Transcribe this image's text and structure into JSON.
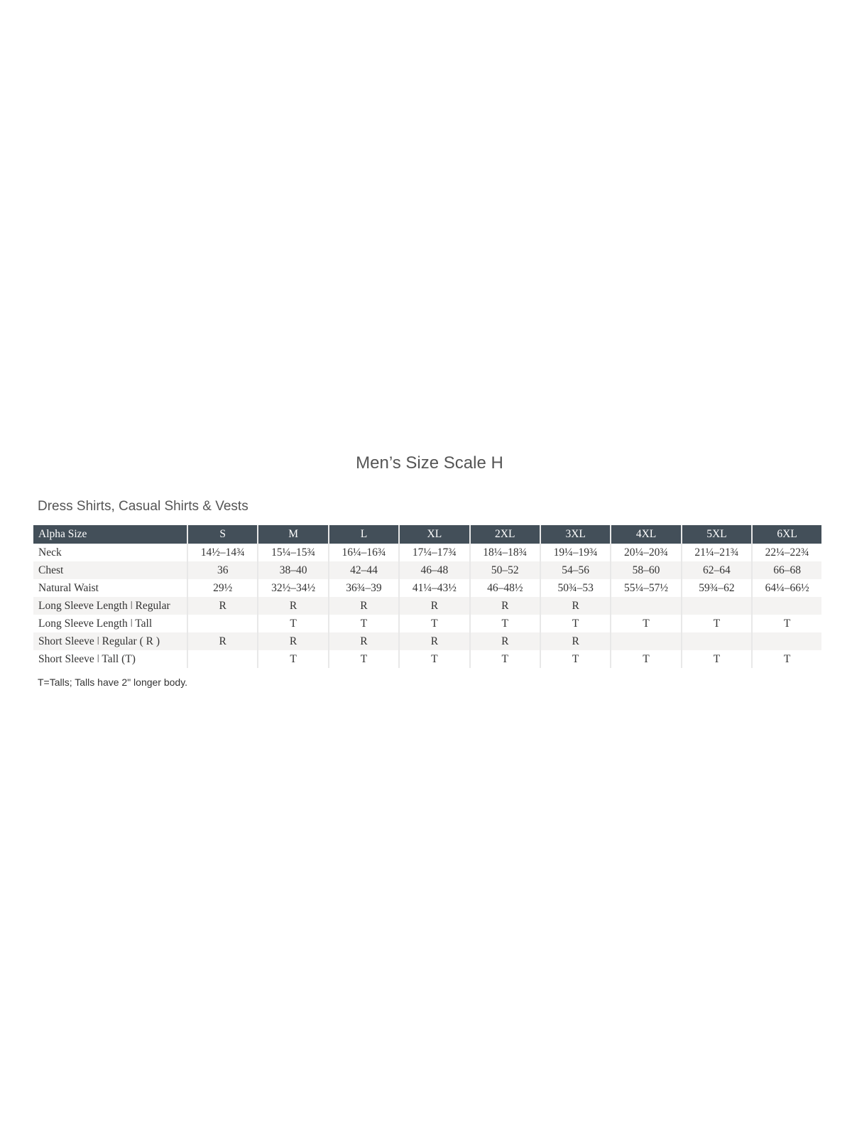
{
  "title": "Men’s Size Scale H",
  "subtitle": "Dress Shirts, Casual Shirts & Vests",
  "table": {
    "headers": [
      "Alpha Size",
      "S",
      "M",
      "L",
      "XL",
      "2XL",
      "3XL",
      "4XL",
      "5XL",
      "6XL"
    ],
    "rows": [
      [
        "Neck",
        "14½–14¾",
        "15¼–15¾",
        "16¼–16¾",
        "17¼–17¾",
        "18¼–18¾",
        "19¼–19¾",
        "20¼–20¾",
        "21¼–21¾",
        "22¼–22¾"
      ],
      [
        "Chest",
        "36",
        "38–40",
        "42–44",
        "46–48",
        "50–52",
        "54–56",
        "58–60",
        "62–64",
        "66–68"
      ],
      [
        "Natural Waist",
        "29½",
        "32½–34½",
        "36¾–39",
        "41¼–43½",
        "46–48½",
        "50¾–53",
        "55¼–57½",
        "59¾–62",
        "64¼–66½"
      ],
      [
        "Long Sleeve Length  ǀ  Regular",
        "R",
        "R",
        "R",
        "R",
        "R",
        "R",
        "",
        "",
        ""
      ],
      [
        "Long Sleeve Length  ǀ  Tall",
        "",
        "T",
        "T",
        "T",
        "T",
        "T",
        "T",
        "T",
        "T"
      ],
      [
        "Short Sleeve  ǀ  Regular ( R )",
        "R",
        "R",
        "R",
        "R",
        "R",
        "R",
        "",
        "",
        ""
      ],
      [
        "Short Sleeve  ǀ  Tall (T)",
        "",
        "T",
        "T",
        "T",
        "T",
        "T",
        "T",
        "T",
        "T"
      ]
    ]
  },
  "footnote": "T=Talls; Talls have 2\" longer body.",
  "colors": {
    "header_bg": "#434f59",
    "stripe": "#f4f3f2"
  }
}
